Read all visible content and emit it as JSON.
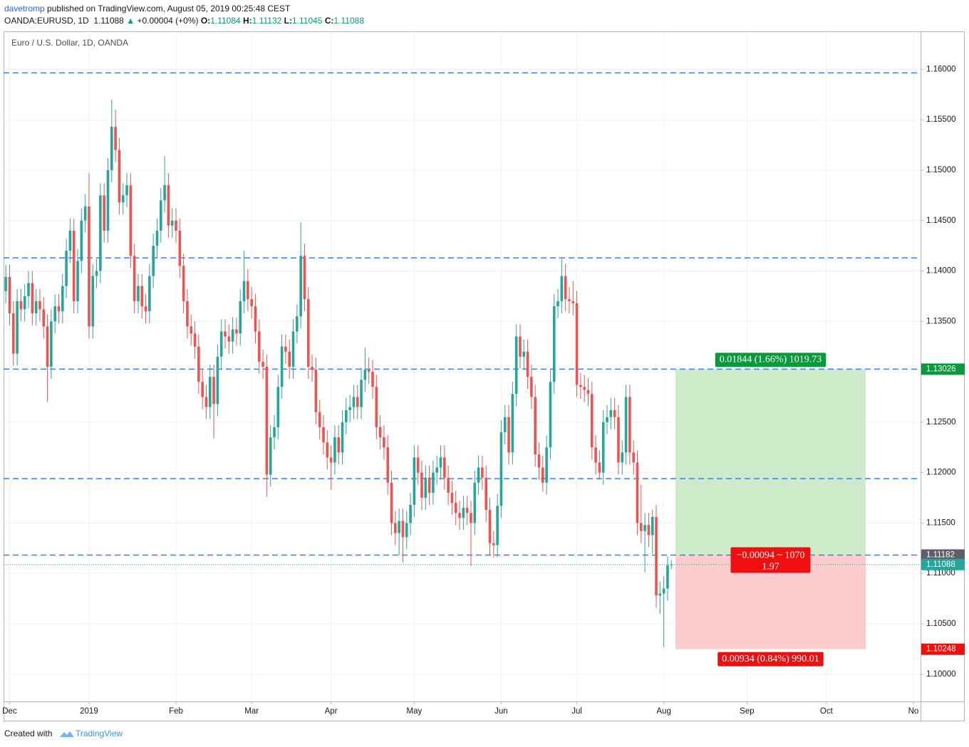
{
  "header": {
    "author": "davetromp",
    "published": "published on TradingView.com, August 05, 2019 00:25:48 CEST",
    "symbol": "OANDA:EURUSD, 1D",
    "last": "1.11088",
    "arrow": "▲",
    "change": "+0.00004 (+0%)",
    "o_label": "O:",
    "o": "1.11084",
    "h_label": "H:",
    "h": "1.11132",
    "l_label": "L:",
    "l": "1.11045",
    "c_label": "C:",
    "c": "1.11088"
  },
  "footer": {
    "created": "Created with",
    "brand": "TradingView"
  },
  "chart_data": {
    "type": "candlestick",
    "title": "Euro / U.S. Dollar, 1D, OANDA",
    "up_color": "#26a69a",
    "down_color": "#ef5350",
    "grid": true,
    "xlim": [
      -0.6,
      241.9
    ],
    "xticks": [
      {
        "value": 1,
        "label": "Dec"
      },
      {
        "value": 22,
        "label": "2019"
      },
      {
        "value": 45,
        "label": "Feb"
      },
      {
        "value": 65,
        "label": "Mar"
      },
      {
        "value": 86,
        "label": "Apr"
      },
      {
        "value": 108,
        "label": "May"
      },
      {
        "value": 131,
        "label": "Jun"
      },
      {
        "value": 151,
        "label": "Jul"
      },
      {
        "value": 174,
        "label": "Aug"
      },
      {
        "value": 196,
        "label": "Sep"
      },
      {
        "value": 217,
        "label": "Oct"
      },
      {
        "value": 240,
        "label": "No"
      }
    ],
    "ylim": [
      1.0973,
      1.1637
    ],
    "yticks": [
      {
        "value": 1.1,
        "label": "1.10000"
      },
      {
        "value": 1.105,
        "label": "1.10500"
      },
      {
        "value": 1.11,
        "label": "1.11000"
      },
      {
        "value": 1.115,
        "label": "1.11500"
      },
      {
        "value": 1.12,
        "label": "1.12000"
      },
      {
        "value": 1.125,
        "label": "1.12500"
      },
      {
        "value": 1.13,
        "label": "1.13000"
      },
      {
        "value": 1.135,
        "label": "1.13500"
      },
      {
        "value": 1.14,
        "label": "1.14000"
      },
      {
        "value": 1.145,
        "label": "1.14500"
      },
      {
        "value": 1.15,
        "label": "1.15000"
      },
      {
        "value": 1.155,
        "label": "1.15500"
      },
      {
        "value": 1.16,
        "label": "1.16000"
      }
    ],
    "open": [
      1.138,
      1.1394,
      1.1358,
      1.1318,
      1.137,
      1.1362,
      1.1375,
      1.1388,
      1.1358,
      1.137,
      1.1362,
      1.1345,
      1.1305,
      1.135,
      1.1365,
      1.136,
      1.1385,
      1.142,
      1.144,
      1.137,
      1.141,
      1.145,
      1.1464,
      1.1345,
      1.1395,
      1.14,
      1.1475,
      1.144,
      1.15,
      1.1543,
      1.152,
      1.1468,
      1.1475,
      1.1485,
      1.1415,
      1.137,
      1.1385,
      1.1365,
      1.136,
      1.1395,
      1.1425,
      1.144,
      1.147,
      1.1485,
      1.1445,
      1.145,
      1.144,
      1.1405,
      1.137,
      1.1345,
      1.1338,
      1.1325,
      1.129,
      1.1275,
      1.1265,
      1.1295,
      1.1268,
      1.1315,
      1.134,
      1.1335,
      1.133,
      1.1342,
      1.1338,
      1.137,
      1.139,
      1.1372,
      1.1365,
      1.134,
      1.131,
      1.1305,
      1.1198,
      1.1235,
      1.1245,
      1.1285,
      1.1325,
      1.132,
      1.1305,
      1.134,
      1.1355,
      1.1415,
      1.1372,
      1.1305,
      1.1302,
      1.126,
      1.1245,
      1.123,
      1.1215,
      1.121,
      1.1235,
      1.122,
      1.125,
      1.1262,
      1.1265,
      1.1275,
      1.1265,
      1.1292,
      1.1302,
      1.13,
      1.1285,
      1.1245,
      1.1235,
      1.1225,
      1.119,
      1.115,
      1.114,
      1.1152,
      1.1136,
      1.115,
      1.1168,
      1.1215,
      1.12,
      1.1175,
      1.1195,
      1.118,
      1.12,
      1.1205,
      1.1215,
      1.1195,
      1.118,
      1.117,
      1.116,
      1.1155,
      1.1165,
      1.116,
      1.115,
      1.119,
      1.1205,
      1.1195,
      1.1163,
      1.113,
      1.1128,
      1.1167,
      1.124,
      1.1255,
      1.122,
      1.1278,
      1.1335,
      1.1315,
      1.132,
      1.1295,
      1.1275,
      1.1218,
      1.1205,
      1.119,
      1.1225,
      1.129,
      1.1365,
      1.137,
      1.1395,
      1.1372,
      1.137,
      1.1368,
      1.1287,
      1.1285,
      1.1282,
      1.1278,
      1.1225,
      1.121,
      1.12,
      1.125,
      1.1255,
      1.1262,
      1.1255,
      1.121,
      1.122,
      1.1275,
      1.122,
      1.121,
      1.115,
      1.1142,
      1.1148,
      1.1138,
      1.1156,
      1.1078,
      1.108,
      1.1085,
      1.11084
    ],
    "high": [
      1.1406,
      1.1406,
      1.137,
      1.1382,
      1.1382,
      1.1387,
      1.14,
      1.14,
      1.1382,
      1.1382,
      1.1374,
      1.1357,
      1.1362,
      1.1377,
      1.1377,
      1.1397,
      1.1432,
      1.1452,
      1.1452,
      1.1422,
      1.1462,
      1.1476,
      1.1497,
      1.1407,
      1.1412,
      1.1487,
      1.1487,
      1.1512,
      1.157,
      1.156,
      1.1532,
      1.1487,
      1.1497,
      1.1497,
      1.1427,
      1.1397,
      1.1397,
      1.1377,
      1.1407,
      1.1437,
      1.1452,
      1.1482,
      1.1514,
      1.1497,
      1.1462,
      1.1462,
      1.1452,
      1.1417,
      1.1382,
      1.1357,
      1.135,
      1.1337,
      1.1302,
      1.1287,
      1.1307,
      1.1307,
      1.1327,
      1.1352,
      1.1352,
      1.1347,
      1.1354,
      1.1354,
      1.1382,
      1.142,
      1.1402,
      1.1384,
      1.1377,
      1.1352,
      1.1322,
      1.1317,
      1.1247,
      1.1257,
      1.1297,
      1.1337,
      1.1337,
      1.1332,
      1.1352,
      1.1367,
      1.1448,
      1.1427,
      1.1384,
      1.1317,
      1.1314,
      1.1272,
      1.1257,
      1.1242,
      1.1227,
      1.1247,
      1.1247,
      1.1262,
      1.1274,
      1.1277,
      1.1287,
      1.1287,
      1.1304,
      1.1324,
      1.1314,
      1.1312,
      1.1297,
      1.1257,
      1.1247,
      1.1237,
      1.1202,
      1.1162,
      1.1164,
      1.1164,
      1.1162,
      1.118,
      1.1227,
      1.1227,
      1.1212,
      1.1207,
      1.1207,
      1.1212,
      1.1217,
      1.1227,
      1.1227,
      1.1207,
      1.1192,
      1.1182,
      1.1172,
      1.1177,
      1.1177,
      1.1172,
      1.1202,
      1.1217,
      1.1217,
      1.1207,
      1.1175,
      1.1142,
      1.1179,
      1.1252,
      1.1267,
      1.1267,
      1.129,
      1.1347,
      1.1347,
      1.1332,
      1.1332,
      1.1307,
      1.1287,
      1.123,
      1.1217,
      1.1237,
      1.1302,
      1.1377,
      1.1382,
      1.1412,
      1.1407,
      1.1384,
      1.139,
      1.138,
      1.1299,
      1.1297,
      1.1294,
      1.129,
      1.1237,
      1.1222,
      1.1262,
      1.1267,
      1.1274,
      1.1274,
      1.1267,
      1.1232,
      1.1287,
      1.1287,
      1.1232,
      1.1222,
      1.1188,
      1.116,
      1.116,
      1.1163,
      1.1168,
      1.1092,
      1.1097,
      1.1117,
      1.11132
    ],
    "low": [
      1.1368,
      1.1346,
      1.1306,
      1.1306,
      1.135,
      1.135,
      1.1363,
      1.1346,
      1.1346,
      1.135,
      1.1333,
      1.127,
      1.1293,
      1.1338,
      1.1348,
      1.1348,
      1.1373,
      1.1408,
      1.1358,
      1.1358,
      1.1398,
      1.1438,
      1.1333,
      1.1333,
      1.1383,
      1.1388,
      1.1428,
      1.1428,
      1.1488,
      1.1508,
      1.1456,
      1.1456,
      1.1463,
      1.1403,
      1.1358,
      1.1358,
      1.1353,
      1.1348,
      1.1348,
      1.1383,
      1.1413,
      1.1428,
      1.1458,
      1.1433,
      1.1433,
      1.1428,
      1.1393,
      1.1358,
      1.1333,
      1.1326,
      1.1313,
      1.1278,
      1.1263,
      1.1253,
      1.1253,
      1.1234,
      1.1256,
      1.1303,
      1.1323,
      1.1318,
      1.1318,
      1.1326,
      1.1326,
      1.1358,
      1.136,
      1.1353,
      1.1328,
      1.1298,
      1.1293,
      1.1176,
      1.1186,
      1.1223,
      1.1233,
      1.1273,
      1.1308,
      1.1293,
      1.1293,
      1.1328,
      1.1343,
      1.136,
      1.1293,
      1.129,
      1.1248,
      1.1233,
      1.1218,
      1.1203,
      1.1183,
      1.1198,
      1.1208,
      1.1208,
      1.1238,
      1.125,
      1.1253,
      1.1253,
      1.1253,
      1.128,
      1.1288,
      1.1273,
      1.1233,
      1.1223,
      1.1213,
      1.1178,
      1.1138,
      1.1128,
      1.1118,
      1.1111,
      1.1124,
      1.1138,
      1.1156,
      1.1188,
      1.1163,
      1.1163,
      1.1168,
      1.1168,
      1.1188,
      1.1193,
      1.1183,
      1.1168,
      1.1158,
      1.1148,
      1.1143,
      1.1143,
      1.1148,
      1.1107,
      1.1138,
      1.1178,
      1.1183,
      1.1151,
      1.1118,
      1.1116,
      1.1116,
      1.1155,
      1.1228,
      1.1208,
      1.1208,
      1.1266,
      1.1303,
      1.1303,
      1.1283,
      1.1263,
      1.1206,
      1.1193,
      1.1181,
      1.1178,
      1.1213,
      1.1278,
      1.1353,
      1.1358,
      1.136,
      1.1358,
      1.1356,
      1.1275,
      1.1273,
      1.127,
      1.1266,
      1.1213,
      1.1198,
      1.1193,
      1.1188,
      1.1238,
      1.1243,
      1.1243,
      1.1198,
      1.1198,
      1.1208,
      1.1208,
      1.1198,
      1.1138,
      1.113,
      1.1101,
      1.1126,
      1.112,
      1.1066,
      1.106,
      1.1027,
      1.1073,
      1.11045
    ],
    "close": [
      1.1394,
      1.1358,
      1.1318,
      1.137,
      1.1362,
      1.1375,
      1.1388,
      1.1358,
      1.137,
      1.1362,
      1.1345,
      1.1305,
      1.135,
      1.1365,
      1.136,
      1.1385,
      1.142,
      1.144,
      1.137,
      1.141,
      1.145,
      1.1464,
      1.1345,
      1.1395,
      1.14,
      1.1475,
      1.144,
      1.15,
      1.1543,
      1.152,
      1.1468,
      1.1475,
      1.1485,
      1.1415,
      1.137,
      1.1385,
      1.1365,
      1.136,
      1.1395,
      1.1425,
      1.144,
      1.147,
      1.1485,
      1.1445,
      1.145,
      1.144,
      1.1405,
      1.137,
      1.1345,
      1.1338,
      1.1325,
      1.129,
      1.1275,
      1.1265,
      1.1295,
      1.1268,
      1.1315,
      1.134,
      1.1335,
      1.133,
      1.1342,
      1.1338,
      1.137,
      1.139,
      1.1372,
      1.1365,
      1.134,
      1.131,
      1.1305,
      1.1198,
      1.1235,
      1.1245,
      1.1285,
      1.1325,
      1.132,
      1.1305,
      1.134,
      1.1355,
      1.1415,
      1.1372,
      1.1305,
      1.1302,
      1.126,
      1.1245,
      1.123,
      1.1215,
      1.121,
      1.1235,
      1.122,
      1.125,
      1.1262,
      1.1265,
      1.1275,
      1.1265,
      1.1292,
      1.1302,
      1.13,
      1.1285,
      1.1245,
      1.1235,
      1.1225,
      1.119,
      1.115,
      1.114,
      1.1152,
      1.1136,
      1.115,
      1.1168,
      1.1215,
      1.12,
      1.1175,
      1.1195,
      1.118,
      1.12,
      1.1205,
      1.1215,
      1.1195,
      1.118,
      1.117,
      1.116,
      1.1155,
      1.1165,
      1.116,
      1.115,
      1.119,
      1.1205,
      1.1195,
      1.1163,
      1.113,
      1.1128,
      1.1167,
      1.124,
      1.1255,
      1.122,
      1.1278,
      1.1335,
      1.1315,
      1.132,
      1.1295,
      1.1275,
      1.1218,
      1.1205,
      1.119,
      1.1225,
      1.129,
      1.1365,
      1.137,
      1.1395,
      1.1372,
      1.137,
      1.1368,
      1.1287,
      1.1285,
      1.1282,
      1.1278,
      1.1225,
      1.121,
      1.12,
      1.125,
      1.1255,
      1.1262,
      1.1255,
      1.121,
      1.122,
      1.1275,
      1.122,
      1.121,
      1.115,
      1.1142,
      1.1148,
      1.1138,
      1.1156,
      1.1078,
      1.108,
      1.1085,
      1.1108,
      1.11088
    ],
    "levels": [
      1.15965,
      1.1413,
      1.13026,
      1.1194,
      1.11182
    ],
    "level_color": "#3d7fe8",
    "last_price": 1.11088,
    "last_color": "#26a69a",
    "price_tags": [
      {
        "value": 1.13026,
        "label": "1.13026",
        "color": "#0a9a3c"
      },
      {
        "value": 1.11182,
        "label": "1.11182",
        "color": "#5d606b"
      },
      {
        "value": 1.11088,
        "label": "1.11088",
        "color": "#26a69a"
      },
      {
        "value": 1.10248,
        "label": "1.10248",
        "color": "#f00f0f"
      }
    ],
    "position": {
      "entry": 1.11182,
      "target": 1.13026,
      "stop": 1.10248,
      "target_color": "#cdebc9",
      "stop_color": "#fccccc",
      "target_label": "0.01844 (1.66%) 1019.73",
      "entry_label": "−0.00094 ~ 1070",
      "ratio_label": "1.97",
      "stop_label": "0.00934 (0.84%) 990.01"
    }
  }
}
